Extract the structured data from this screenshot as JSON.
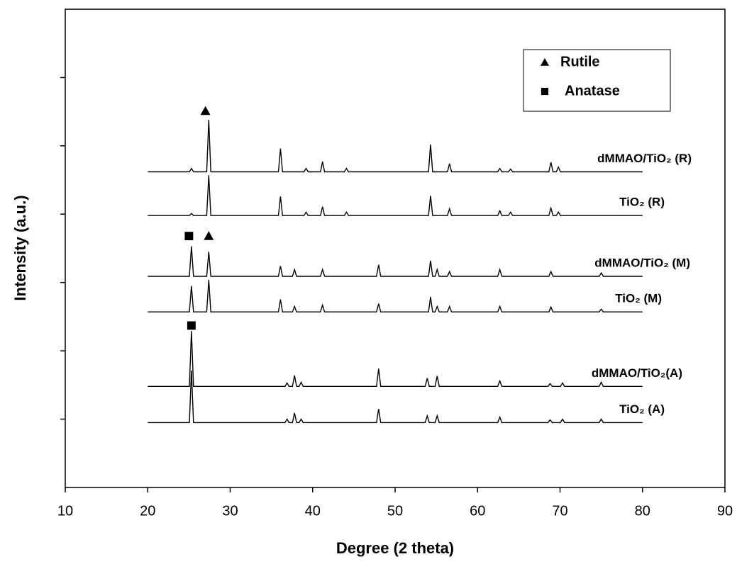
{
  "chart_data": {
    "type": "line",
    "x_label": "Degree (2 theta)",
    "y_label": "Intensity (a.u.)",
    "xlim": [
      10,
      90
    ],
    "xticks": [
      10,
      20,
      30,
      40,
      50,
      60,
      70,
      80,
      90
    ],
    "ylim": [
      0,
      7
    ],
    "yticks": [
      1,
      2,
      3,
      4,
      5,
      6
    ],
    "ytick_labels": false,
    "legend_position": "upper right",
    "legend": [
      {
        "shape": "triangle",
        "label": "Rutile"
      },
      {
        "shape": "square",
        "label": "Anatase"
      }
    ],
    "markers": [
      {
        "shape": "triangle",
        "x": 27,
        "y": 5.51
      },
      {
        "shape": "triangle",
        "x": 27.4,
        "y": 3.68
      },
      {
        "shape": "square",
        "x": 25,
        "y": 3.68
      },
      {
        "shape": "square",
        "x": 25.3,
        "y": 2.37
      }
    ],
    "series": [
      {
        "name": "TiO₂ (A)",
        "color": "#000000",
        "x": [
          20,
          25.05,
          25.3,
          25.55,
          36.65,
          36.9,
          37.15,
          37.55,
          37.8,
          38.05,
          38.35,
          38.6,
          38.85,
          47.75,
          48,
          48.25,
          53.65,
          53.9,
          54.15,
          54.85,
          55.1,
          55.35,
          62.45,
          62.7,
          62.95,
          68.55,
          68.8,
          69.05,
          70.05,
          70.3,
          70.55,
          74.75,
          75,
          75.25,
          80
        ],
        "values": [
          0.95,
          0.95,
          1.71,
          0.95,
          0.95,
          1.0,
          0.95,
          0.95,
          1.09,
          0.95,
          0.95,
          1.0,
          0.95,
          0.95,
          1.15,
          0.95,
          0.95,
          1.05,
          0.95,
          0.95,
          1.05,
          0.95,
          0.95,
          1.03,
          0.95,
          0.95,
          0.99,
          0.95,
          0.95,
          1.0,
          0.95,
          0.95,
          1.0,
          0.95,
          0.95
        ]
      },
      {
        "name": "dMMAO/TiO₂(A)",
        "color": "#000000",
        "x": [
          20,
          25.05,
          25.3,
          25.55,
          36.65,
          36.9,
          37.15,
          37.55,
          37.8,
          38.05,
          38.35,
          38.6,
          38.85,
          47.75,
          48,
          48.25,
          53.65,
          53.9,
          54.15,
          54.85,
          55.1,
          55.35,
          62.45,
          62.7,
          62.95,
          68.55,
          68.8,
          69.05,
          70.05,
          70.3,
          70.55,
          74.75,
          75,
          75.25,
          80
        ],
        "values": [
          1.48,
          1.48,
          2.29,
          1.48,
          1.48,
          1.53,
          1.48,
          1.48,
          1.64,
          1.48,
          1.48,
          1.54,
          1.48,
          1.48,
          1.74,
          1.48,
          1.48,
          1.6,
          1.48,
          1.48,
          1.63,
          1.48,
          1.48,
          1.56,
          1.48,
          1.48,
          1.52,
          1.48,
          1.48,
          1.53,
          1.48,
          1.48,
          1.54,
          1.48,
          1.48
        ]
      },
      {
        "name": "TiO₂ (M)",
        "color": "#000000",
        "x": [
          20,
          25.05,
          25.3,
          25.55,
          27.15,
          27.4,
          27.65,
          35.85,
          36.1,
          36.35,
          37.55,
          37.8,
          38.05,
          40.95,
          41.2,
          41.45,
          47.75,
          48,
          48.25,
          54.05,
          54.3,
          54.55,
          54.85,
          55.1,
          55.35,
          56.35,
          56.6,
          56.85,
          62.45,
          62.7,
          62.95,
          68.65,
          68.9,
          69.15,
          74.75,
          75,
          75.25,
          80
        ],
        "values": [
          2.57,
          2.57,
          2.95,
          2.57,
          2.57,
          3.04,
          2.57,
          2.57,
          2.75,
          2.57,
          2.57,
          2.65,
          2.57,
          2.57,
          2.67,
          2.57,
          2.57,
          2.69,
          2.57,
          2.57,
          2.79,
          2.57,
          2.57,
          2.65,
          2.57,
          2.57,
          2.65,
          2.57,
          2.57,
          2.65,
          2.57,
          2.57,
          2.64,
          2.57,
          2.57,
          2.61,
          2.57,
          2.57
        ]
      },
      {
        "name": "dMMAO/TiO₂ (M)",
        "color": "#000000",
        "x": [
          20,
          25.05,
          25.3,
          25.55,
          27.15,
          27.4,
          27.65,
          35.85,
          36.1,
          36.35,
          37.55,
          37.8,
          38.05,
          40.95,
          41.2,
          41.45,
          47.75,
          48,
          48.25,
          54.05,
          54.3,
          54.55,
          54.85,
          55.1,
          55.35,
          56.35,
          56.6,
          56.85,
          62.45,
          62.7,
          62.95,
          68.65,
          68.9,
          69.15,
          74.75,
          75,
          75.25,
          80
        ],
        "values": [
          3.09,
          3.09,
          3.53,
          3.09,
          3.09,
          3.45,
          3.09,
          3.09,
          3.24,
          3.09,
          3.09,
          3.19,
          3.09,
          3.09,
          3.19,
          3.09,
          3.09,
          3.26,
          3.09,
          3.09,
          3.32,
          3.09,
          3.09,
          3.19,
          3.09,
          3.09,
          3.16,
          3.09,
          3.09,
          3.19,
          3.09,
          3.09,
          3.16,
          3.09,
          3.09,
          3.14,
          3.09,
          3.09
        ]
      },
      {
        "name": "TiO₂ (R)",
        "color": "#000000",
        "x": [
          20,
          25.05,
          25.3,
          25.55,
          27.15,
          27.4,
          27.65,
          35.85,
          36.1,
          36.35,
          38.95,
          39.2,
          39.45,
          40.95,
          41.2,
          41.45,
          43.85,
          44.1,
          44.35,
          54.05,
          54.3,
          54.55,
          56.35,
          56.6,
          56.85,
          62.45,
          62.7,
          62.95,
          63.75,
          64,
          64.25,
          68.65,
          68.9,
          69.15,
          69.55,
          69.8,
          70.05,
          80
        ],
        "values": [
          3.98,
          3.98,
          4.01,
          3.98,
          3.98,
          4.57,
          3.98,
          3.98,
          4.26,
          3.98,
          3.98,
          4.03,
          3.98,
          3.98,
          4.11,
          3.98,
          3.98,
          4.03,
          3.98,
          3.98,
          4.27,
          3.98,
          3.98,
          4.08,
          3.98,
          3.98,
          4.05,
          3.98,
          3.98,
          4.03,
          3.98,
          3.98,
          4.09,
          3.98,
          3.98,
          4.03,
          3.98,
          3.98
        ]
      },
      {
        "name": "dMMAO/TiO₂ (R)",
        "color": "#000000",
        "x": [
          20,
          25.05,
          25.3,
          25.55,
          27.15,
          27.4,
          27.65,
          35.85,
          36.1,
          36.35,
          38.95,
          39.2,
          39.45,
          40.95,
          41.2,
          41.45,
          43.85,
          44.1,
          44.35,
          54.05,
          54.3,
          54.55,
          56.35,
          56.6,
          56.85,
          62.45,
          62.7,
          62.95,
          63.75,
          64,
          64.25,
          68.65,
          68.9,
          69.15,
          69.55,
          69.8,
          70.05,
          80
        ],
        "values": [
          4.62,
          4.62,
          4.67,
          4.62,
          4.62,
          5.38,
          4.62,
          4.62,
          4.96,
          4.62,
          4.62,
          4.67,
          4.62,
          4.62,
          4.77,
          4.62,
          4.62,
          4.67,
          4.62,
          4.62,
          5.02,
          4.62,
          4.62,
          4.74,
          4.62,
          4.62,
          4.67,
          4.62,
          4.62,
          4.66,
          4.62,
          4.62,
          4.76,
          4.62,
          4.62,
          4.69,
          4.62,
          4.62
        ]
      }
    ]
  }
}
